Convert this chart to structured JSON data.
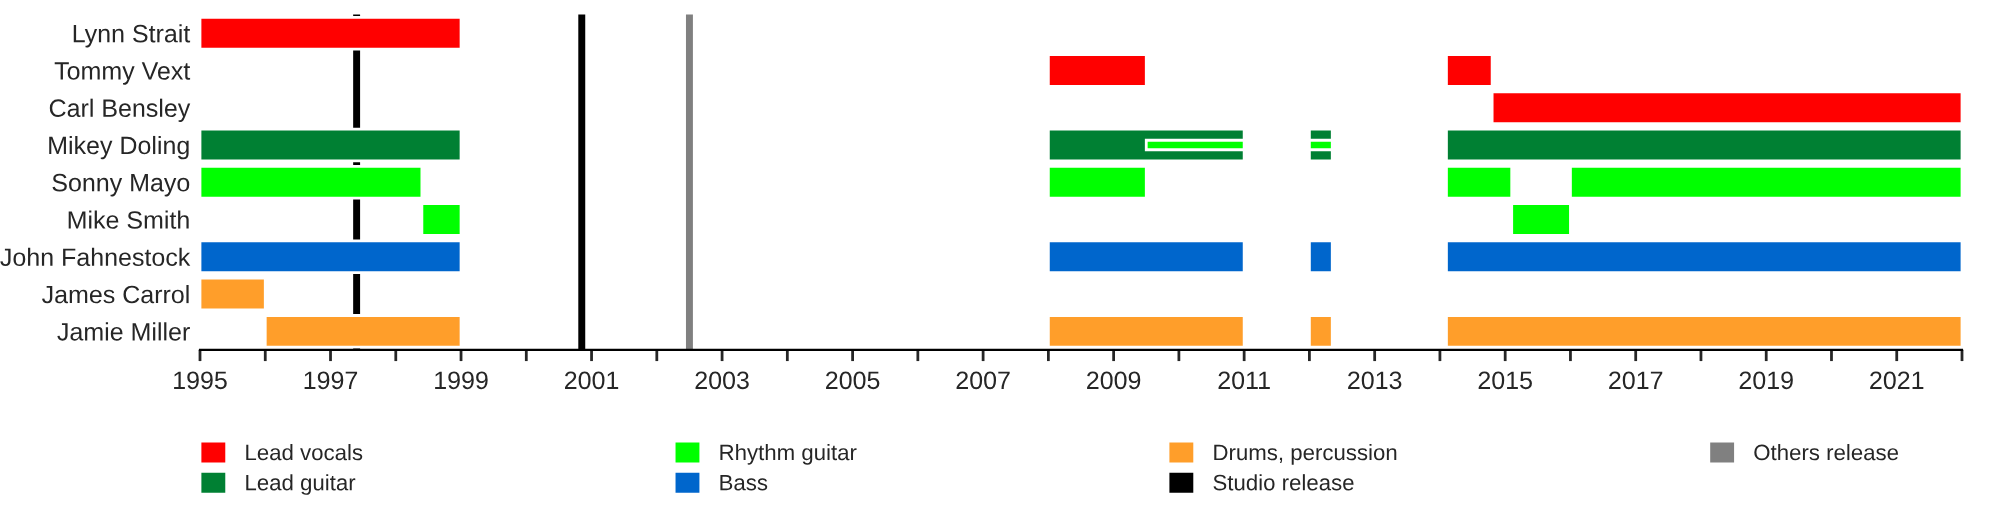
{
  "chart_data": {
    "type": "bar",
    "orientation": "horizontal",
    "categories": [
      "Lynn Strait",
      "Tommy Vext",
      "Carl Bensley",
      "Mikey Doling",
      "Sonny Mayo",
      "Mike Smith",
      "John Fahnestock",
      "James Carrol",
      "Jamie Miller"
    ],
    "series": [
      {
        "name": "Lead vocals",
        "color": "#ff0000",
        "base": [
          1995,
          2008,
          2014.8,
          null,
          null,
          null,
          null,
          null,
          null
        ],
        "values": [
          4,
          1.5,
          7.2,
          null,
          null,
          null,
          null,
          null,
          null
        ]
      },
      {
        "color": "#ff0000",
        "base": [
          null,
          2014.1,
          null,
          null,
          null,
          null,
          null,
          null,
          null
        ],
        "values": [
          null,
          0.7,
          null,
          null,
          null,
          null,
          null,
          null,
          null
        ]
      },
      {
        "name": "Lead guitar",
        "color": "#008033",
        "base": [
          null,
          null,
          null,
          1995,
          null,
          null,
          null,
          null,
          null
        ],
        "values": [
          null,
          null,
          null,
          4,
          null,
          null,
          null,
          null,
          null
        ]
      },
      {
        "color": "#008033",
        "base": [
          null,
          null,
          null,
          2008,
          null,
          null,
          null,
          null,
          null
        ],
        "values": [
          null,
          null,
          null,
          3,
          null,
          null,
          null,
          null,
          null
        ]
      },
      {
        "color": "#008033",
        "base": [
          null,
          null,
          null,
          2012,
          null,
          null,
          null,
          null,
          null
        ],
        "values": [
          null,
          null,
          null,
          0.35,
          null,
          null,
          null,
          null,
          null
        ]
      },
      {
        "color": "#008033",
        "base": [
          null,
          null,
          null,
          2014.1,
          null,
          null,
          null,
          null,
          null
        ],
        "values": [
          null,
          null,
          null,
          7.9,
          null,
          null,
          null,
          null,
          null
        ]
      },
      {
        "name": "Rhythm guitar",
        "color": "#00ff00",
        "base": [
          null,
          null,
          null,
          2009.5,
          1995,
          1998.4,
          null,
          null,
          null
        ],
        "values": [
          null,
          null,
          null,
          1.5,
          3.4,
          0.6,
          null,
          null,
          null
        ]
      },
      {
        "color": "#00ff00",
        "base": [
          null,
          null,
          null,
          2012,
          2008,
          2015.1,
          null,
          null,
          null
        ],
        "values": [
          null,
          null,
          null,
          0.35,
          1.5,
          0.9,
          null,
          null,
          null
        ]
      },
      {
        "color": "#00ff00",
        "base": [
          null,
          null,
          null,
          null,
          2014.1,
          null,
          null,
          null,
          null
        ],
        "values": [
          null,
          null,
          null,
          null,
          1.0,
          null,
          null,
          null,
          null
        ]
      },
      {
        "color": "#00ff00",
        "base": [
          null,
          null,
          null,
          null,
          2016,
          null,
          null,
          null,
          null
        ],
        "values": [
          null,
          null,
          null,
          null,
          6,
          null,
          null,
          null,
          null
        ]
      },
      {
        "name": "Bass",
        "color": "#0066cc",
        "base": [
          null,
          null,
          null,
          null,
          null,
          null,
          1995,
          null,
          null
        ],
        "values": [
          null,
          null,
          null,
          null,
          null,
          null,
          4,
          null,
          null
        ]
      },
      {
        "color": "#0066cc",
        "base": [
          null,
          null,
          null,
          null,
          null,
          null,
          2008,
          null,
          null
        ],
        "values": [
          null,
          null,
          null,
          null,
          null,
          null,
          3,
          null,
          null
        ]
      },
      {
        "color": "#0066cc",
        "base": [
          null,
          null,
          null,
          null,
          null,
          null,
          2012,
          null,
          null
        ],
        "values": [
          null,
          null,
          null,
          null,
          null,
          null,
          0.35,
          null,
          null
        ]
      },
      {
        "color": "#0066cc",
        "base": [
          null,
          null,
          null,
          null,
          null,
          null,
          2014.1,
          null,
          null
        ],
        "values": [
          null,
          null,
          null,
          null,
          null,
          null,
          7.9,
          null,
          null
        ]
      },
      {
        "name": "Drums, percussion",
        "color": "#ff9e2a",
        "base": [
          null,
          null,
          null,
          null,
          null,
          null,
          null,
          1995,
          1996
        ],
        "values": [
          null,
          null,
          null,
          null,
          null,
          null,
          null,
          1,
          3
        ]
      },
      {
        "color": "#ff9e2a",
        "base": [
          null,
          null,
          null,
          null,
          null,
          null,
          null,
          null,
          2008
        ],
        "values": [
          null,
          null,
          null,
          null,
          null,
          null,
          null,
          null,
          3
        ]
      },
      {
        "color": "#ff9e2a",
        "base": [
          null,
          null,
          null,
          null,
          null,
          null,
          null,
          null,
          2012
        ],
        "values": [
          null,
          null,
          null,
          null,
          null,
          null,
          null,
          null,
          0.35
        ]
      },
      {
        "color": "#ff9e2a",
        "base": [
          null,
          null,
          null,
          null,
          null,
          null,
          null,
          null,
          2014.1
        ],
        "values": [
          null,
          null,
          null,
          null,
          null,
          null,
          null,
          null,
          7.9
        ]
      }
    ],
    "ref_lines": [
      {
        "axis": "x",
        "value": 1997.4,
        "label": "Studio release",
        "color": "#000000"
      },
      {
        "axis": "x",
        "value": 2000.85,
        "label": null,
        "color": "#000000"
      },
      {
        "axis": "x",
        "value": 2002.5,
        "label": "Others release",
        "color": "#808080"
      }
    ],
    "xlim": [
      1995,
      2022
    ],
    "xticks": [
      1995,
      {
        "value": 1996,
        "label": null
      },
      1997,
      {
        "value": 1998,
        "label": null
      },
      1999,
      {
        "value": 2000,
        "label": null
      },
      2001,
      {
        "value": 2002,
        "label": null
      },
      2003,
      {
        "value": 2004,
        "label": null
      },
      2005,
      {
        "value": 2006,
        "label": null
      },
      2007,
      {
        "value": 2008,
        "label": null
      },
      2009,
      {
        "value": 2010,
        "label": null
      },
      2011,
      {
        "value": 2012,
        "label": null
      },
      2013,
      {
        "value": 2014,
        "label": null
      },
      2015,
      {
        "value": 2016,
        "label": null
      },
      2017,
      {
        "value": 2018,
        "label": null
      },
      2019,
      {
        "value": 2020,
        "label": null
      },
      2021,
      {
        "value": 2022,
        "label": null
      }
    ],
    "legend": "bottom",
    "grid": false
  }
}
